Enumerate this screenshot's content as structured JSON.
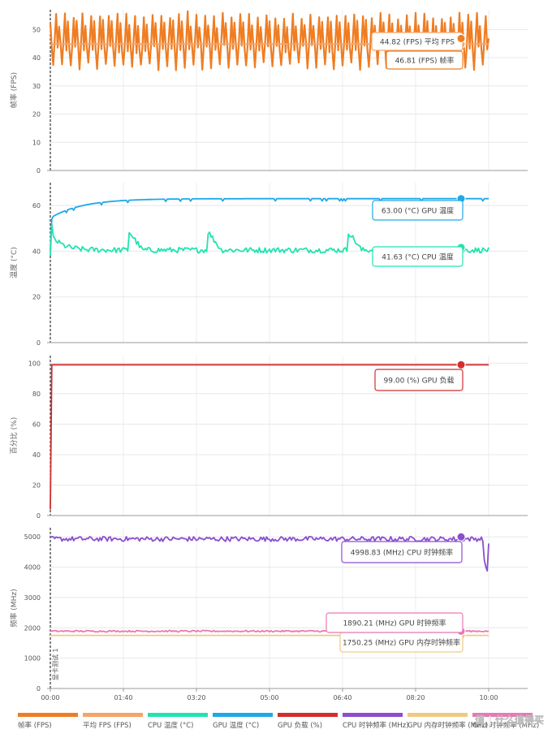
{
  "chart_data": {
    "type": "line",
    "x_ticks": [
      "00:00",
      "01:40",
      "03:20",
      "05:00",
      "06:40",
      "08:20",
      "10:00"
    ],
    "vertical_marker_label": "显卡测试 1",
    "panels": [
      {
        "ylabel": "帧率 (FPS)",
        "ylim": [
          0,
          57
        ],
        "yticks": [
          "0",
          "10",
          "20",
          "30",
          "40",
          "50"
        ],
        "series": [
          {
            "name": "帧率 (FPS)",
            "color": "#ef7d22",
            "pattern": "fps",
            "last_value": 46.81
          },
          {
            "name": "平均 FPS",
            "color": "#f5a46a",
            "pattern": "const",
            "value": 44.82
          }
        ],
        "callouts": [
          {
            "text": "44.82 (FPS) 平均 FPS",
            "color": "#f5a46a"
          },
          {
            "text": "46.81 (FPS) 帧率",
            "color": "#ef7d22"
          }
        ]
      },
      {
        "ylabel": "温度 (°C)",
        "ylim": [
          0,
          70
        ],
        "yticks": [
          "0",
          "20",
          "40",
          "60"
        ],
        "series": [
          {
            "name": "GPU 温度 (°C)",
            "color": "#1fa8e8",
            "pattern": "gpu_temp",
            "last_value": 63.0
          },
          {
            "name": "CPU 温度 (°C)",
            "color": "#22e3b0",
            "pattern": "cpu_temp",
            "last_value": 41.63
          }
        ],
        "callouts": [
          {
            "text": "63.00 (°C) GPU 温度",
            "color": "#1fa8e8"
          },
          {
            "text": "41.63 (°C) CPU 温度",
            "color": "#22e3b0"
          }
        ]
      },
      {
        "ylabel": "百分比 (%)",
        "ylim": [
          0,
          105
        ],
        "yticks": [
          "0",
          "20",
          "40",
          "60",
          "80",
          "100"
        ],
        "series": [
          {
            "name": "GPU 负载 (%)",
            "color": "#d22e2e",
            "pattern": "gpu_load",
            "last_value": 99.0
          }
        ],
        "callouts": [
          {
            "text": "99.00 (%) GPU 负载",
            "color": "#d22e2e"
          }
        ]
      },
      {
        "ylabel": "频率 (MHz)",
        "ylim": [
          0,
          5300
        ],
        "yticks": [
          "0",
          "1000",
          "2000",
          "3000",
          "4000",
          "5000"
        ],
        "series": [
          {
            "name": "CPU 时钟频率 (MHz)",
            "color": "#8a4fcf",
            "pattern": "cpu_clock",
            "last_value": 4998.83
          },
          {
            "name": "GPU 时钟频率 (MHz)",
            "color": "#e879b4",
            "pattern": "gpu_clock",
            "last_value": 1890.21
          },
          {
            "name": "GPU 内存时钟频率 (MHz)",
            "color": "#f0c981",
            "pattern": "const",
            "value": 1750.25
          }
        ],
        "callouts": [
          {
            "text": "4998.83 (MHz) CPU 时钟频率",
            "color": "#8a4fcf"
          },
          {
            "text": "1750.25 (MHz) GPU 内存时钟频率",
            "color": "#f0c981"
          },
          {
            "text": "1890.21 (MHz) GPU 时钟频率",
            "color": "#e879b4"
          }
        ]
      }
    ],
    "legend": [
      {
        "name": "帧率 (FPS)",
        "color": "#ef7d22"
      },
      {
        "name": "平均 FPS (FPS)",
        "color": "#f5a46a"
      },
      {
        "name": "CPU 温度 (°C)",
        "color": "#22e3b0"
      },
      {
        "name": "GPU 温度 (°C)",
        "color": "#1fa8e8"
      },
      {
        "name": "GPU 负载 (%)",
        "color": "#d22e2e"
      },
      {
        "name": "CPU 时钟频率 (MHz)",
        "color": "#8a4fcf"
      },
      {
        "name": "GPU 内存时钟频率 (MHz)",
        "color": "#f0c981"
      },
      {
        "name": "GPU 时钟频率 (MHz)",
        "color": "#e879b4"
      }
    ],
    "watermark": "值 | 什么值得买"
  }
}
